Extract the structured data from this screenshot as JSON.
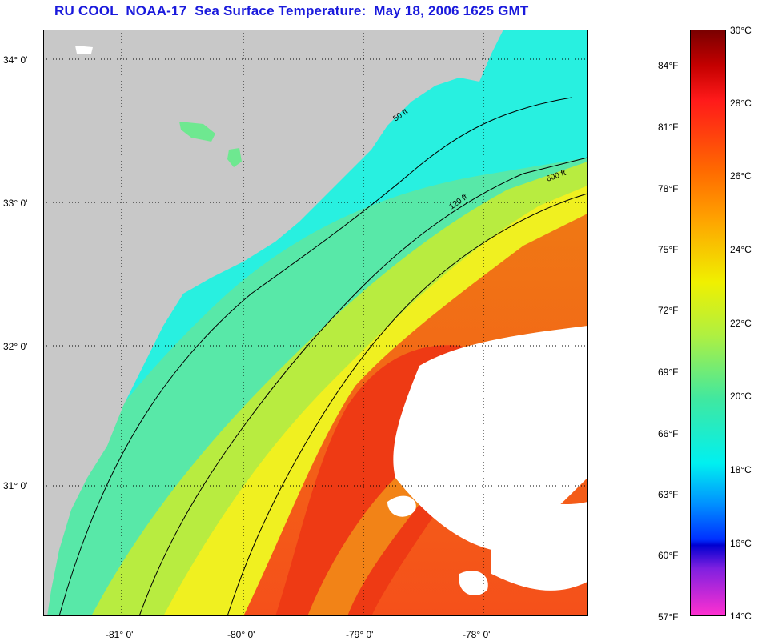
{
  "title": "RU COOL  NOAA-17  Sea Surface Temperature:  May 18, 2006 1625 GMT",
  "map": {
    "lon_ticks": [
      "-81° 0'",
      "-80° 0'",
      "-79° 0'",
      "-78° 0'"
    ],
    "lat_ticks": [
      "34° 0'",
      "33° 0'",
      "32° 0'",
      "31° 0'"
    ],
    "contour_labels": [
      "50 ft",
      "120 ft",
      "600 ft"
    ],
    "colors": {
      "land": "#c8c8c8",
      "cloud": "#ffffff"
    }
  },
  "colorbar": {
    "celsius": [
      "30°C",
      "28°C",
      "26°C",
      "24°C",
      "22°C",
      "20°C",
      "18°C",
      "16°C",
      "14°C"
    ],
    "fahrenheit": [
      "84°F",
      "81°F",
      "78°F",
      "75°F",
      "72°F",
      "69°F",
      "66°F",
      "63°F",
      "60°F",
      "57°F"
    ]
  }
}
